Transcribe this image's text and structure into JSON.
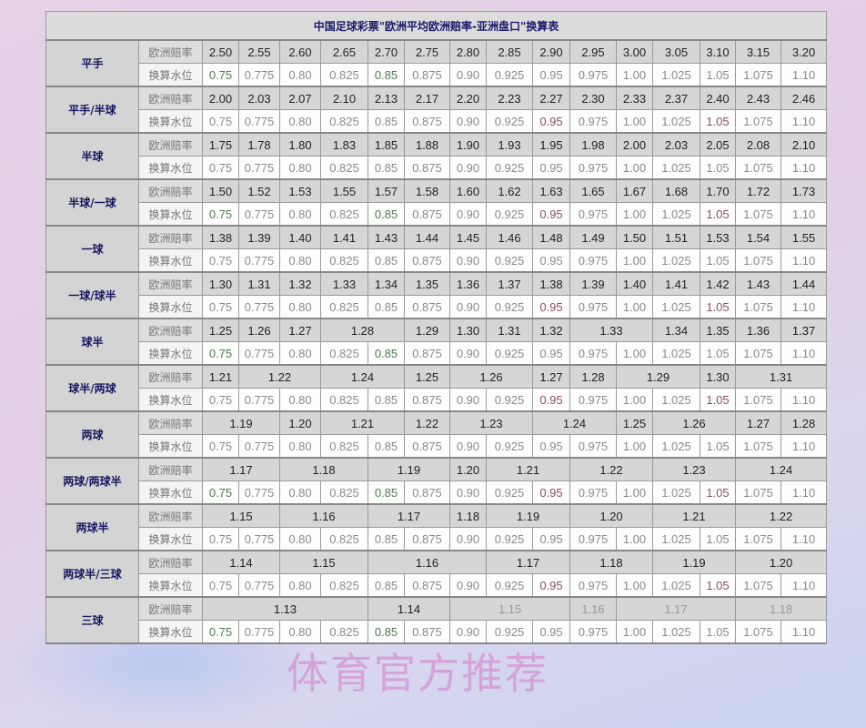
{
  "title": "中国足球彩票\"欧洲平均欧洲赔率-亚洲盘口\"换算表",
  "row_labels": {
    "odds": "欧洲赔率",
    "water": "换算水位"
  },
  "water_levels": [
    "0.75",
    "0.775",
    "0.80",
    "0.825",
    "0.85",
    "0.875",
    "0.90",
    "0.925",
    "0.95",
    "0.975",
    "1.00",
    "1.025",
    "1.05",
    "1.075",
    "1.10"
  ],
  "groups": [
    {
      "label": "平手",
      "odds": [
        {
          "v": "2.50"
        },
        {
          "v": "2.55"
        },
        {
          "v": "2.60"
        },
        {
          "v": "2.65"
        },
        {
          "v": "2.70"
        },
        {
          "v": "2.75"
        },
        {
          "v": "2.80"
        },
        {
          "v": "2.85"
        },
        {
          "v": "2.90"
        },
        {
          "v": "2.95"
        },
        {
          "v": "3.00"
        },
        {
          "v": "3.05"
        },
        {
          "v": "3.10"
        },
        {
          "v": "3.15"
        },
        {
          "v": "3.20"
        }
      ]
    },
    {
      "label": "平手/半球",
      "odds": [
        {
          "v": "2.00"
        },
        {
          "v": "2.03"
        },
        {
          "v": "2.07"
        },
        {
          "v": "2.10"
        },
        {
          "v": "2.13"
        },
        {
          "v": "2.17"
        },
        {
          "v": "2.20"
        },
        {
          "v": "2.23"
        },
        {
          "v": "2.27"
        },
        {
          "v": "2.30"
        },
        {
          "v": "2.33"
        },
        {
          "v": "2.37"
        },
        {
          "v": "2.40"
        },
        {
          "v": "2.43"
        },
        {
          "v": "2.46"
        }
      ]
    },
    {
      "label": "半球",
      "odds": [
        {
          "v": "1.75"
        },
        {
          "v": "1.78"
        },
        {
          "v": "1.80"
        },
        {
          "v": "1.83"
        },
        {
          "v": "1.85"
        },
        {
          "v": "1.88"
        },
        {
          "v": "1.90"
        },
        {
          "v": "1.93"
        },
        {
          "v": "1.95"
        },
        {
          "v": "1.98"
        },
        {
          "v": "2.00"
        },
        {
          "v": "2.03"
        },
        {
          "v": "2.05"
        },
        {
          "v": "2.08"
        },
        {
          "v": "2.10"
        }
      ]
    },
    {
      "label": "半球/一球",
      "odds": [
        {
          "v": "1.50"
        },
        {
          "v": "1.52"
        },
        {
          "v": "1.53"
        },
        {
          "v": "1.55"
        },
        {
          "v": "1.57"
        },
        {
          "v": "1.58"
        },
        {
          "v": "1.60"
        },
        {
          "v": "1.62"
        },
        {
          "v": "1.63"
        },
        {
          "v": "1.65"
        },
        {
          "v": "1.67"
        },
        {
          "v": "1.68"
        },
        {
          "v": "1.70"
        },
        {
          "v": "1.72"
        },
        {
          "v": "1.73"
        }
      ]
    },
    {
      "label": "一球",
      "odds": [
        {
          "v": "1.38"
        },
        {
          "v": "1.39"
        },
        {
          "v": "1.40"
        },
        {
          "v": "1.41"
        },
        {
          "v": "1.43"
        },
        {
          "v": "1.44"
        },
        {
          "v": "1.45"
        },
        {
          "v": "1.46"
        },
        {
          "v": "1.48"
        },
        {
          "v": "1.49"
        },
        {
          "v": "1.50"
        },
        {
          "v": "1.51"
        },
        {
          "v": "1.53"
        },
        {
          "v": "1.54"
        },
        {
          "v": "1.55"
        }
      ]
    },
    {
      "label": "一球/球半",
      "odds": [
        {
          "v": "1.30"
        },
        {
          "v": "1.31"
        },
        {
          "v": "1.32"
        },
        {
          "v": "1.33"
        },
        {
          "v": "1.34"
        },
        {
          "v": "1.35"
        },
        {
          "v": "1.36"
        },
        {
          "v": "1.37"
        },
        {
          "v": "1.38"
        },
        {
          "v": "1.39"
        },
        {
          "v": "1.40"
        },
        {
          "v": "1.41"
        },
        {
          "v": "1.42"
        },
        {
          "v": "1.43"
        },
        {
          "v": "1.44"
        }
      ]
    },
    {
      "label": "球半",
      "odds": [
        {
          "v": "1.25"
        },
        {
          "v": "1.26"
        },
        {
          "v": "1.27"
        },
        {
          "v": "1.28",
          "span": 2
        },
        {
          "v": "1.29"
        },
        {
          "v": "1.30"
        },
        {
          "v": "1.31"
        },
        {
          "v": "1.32"
        },
        {
          "v": "1.33",
          "span": 2
        },
        {
          "v": "1.34"
        },
        {
          "v": "1.35"
        },
        {
          "v": "1.36"
        },
        {
          "v": "1.37"
        }
      ]
    },
    {
      "label": "球半/两球",
      "odds": [
        {
          "v": "1.21"
        },
        {
          "v": "1.22",
          "span": 2
        },
        {
          "v": "1.24",
          "span": 2
        },
        {
          "v": "1.25"
        },
        {
          "v": "1.26",
          "span": 2
        },
        {
          "v": "1.27"
        },
        {
          "v": "1.28"
        },
        {
          "v": "1.29",
          "span": 2
        },
        {
          "v": "1.30"
        },
        {
          "v": "1.31",
          "span": 2
        }
      ]
    },
    {
      "label": "两球",
      "odds": [
        {
          "v": "1.19",
          "span": 2
        },
        {
          "v": "1.20"
        },
        {
          "v": "1.21",
          "span": 2
        },
        {
          "v": "1.22"
        },
        {
          "v": "1.23",
          "span": 2
        },
        {
          "v": "1.24",
          "span": 2
        },
        {
          "v": "1.25"
        },
        {
          "v": "1.26",
          "span": 2
        },
        {
          "v": "1.27"
        },
        {
          "v": "1.28"
        }
      ]
    },
    {
      "label": "两球/两球半",
      "odds": [
        {
          "v": "1.17",
          "span": 2
        },
        {
          "v": "1.18",
          "span": 2
        },
        {
          "v": "1.19",
          "span": 2
        },
        {
          "v": "1.20"
        },
        {
          "v": "1.21",
          "span": 2
        },
        {
          "v": "1.22",
          "span": 2
        },
        {
          "v": "1.23",
          "span": 2
        },
        {
          "v": "1.24",
          "span": 2
        }
      ]
    },
    {
      "label": "两球半",
      "odds": [
        {
          "v": "1.15",
          "span": 2
        },
        {
          "v": "1.16",
          "span": 2
        },
        {
          "v": "1.17",
          "span": 2
        },
        {
          "v": "1.18"
        },
        {
          "v": "1.19",
          "span": 2
        },
        {
          "v": "1.20",
          "span": 2
        },
        {
          "v": "1.21",
          "span": 2
        },
        {
          "v": "1.22",
          "span": 2
        }
      ]
    },
    {
      "label": "两球半/三球",
      "odds": [
        {
          "v": "1.14",
          "span": 2
        },
        {
          "v": "1.15",
          "span": 2
        },
        {
          "v": "1.16",
          "span": 3
        },
        {
          "v": "1.17",
          "span": 2
        },
        {
          "v": "1.18",
          "span": 2
        },
        {
          "v": "1.19",
          "span": 2
        },
        {
          "v": "1.20",
          "span": 2
        }
      ]
    },
    {
      "label": "三球",
      "odds": [
        {
          "v": "1.13",
          "span": 4
        },
        {
          "v": "1.14",
          "span": 2
        },
        {
          "v": "1.15",
          "span": 3
        },
        {
          "v": "1.16"
        },
        {
          "v": "1.17",
          "span": 3
        },
        {
          "v": "1.18",
          "span": 2
        }
      ]
    }
  ],
  "watermark": "体育官方推荐"
}
